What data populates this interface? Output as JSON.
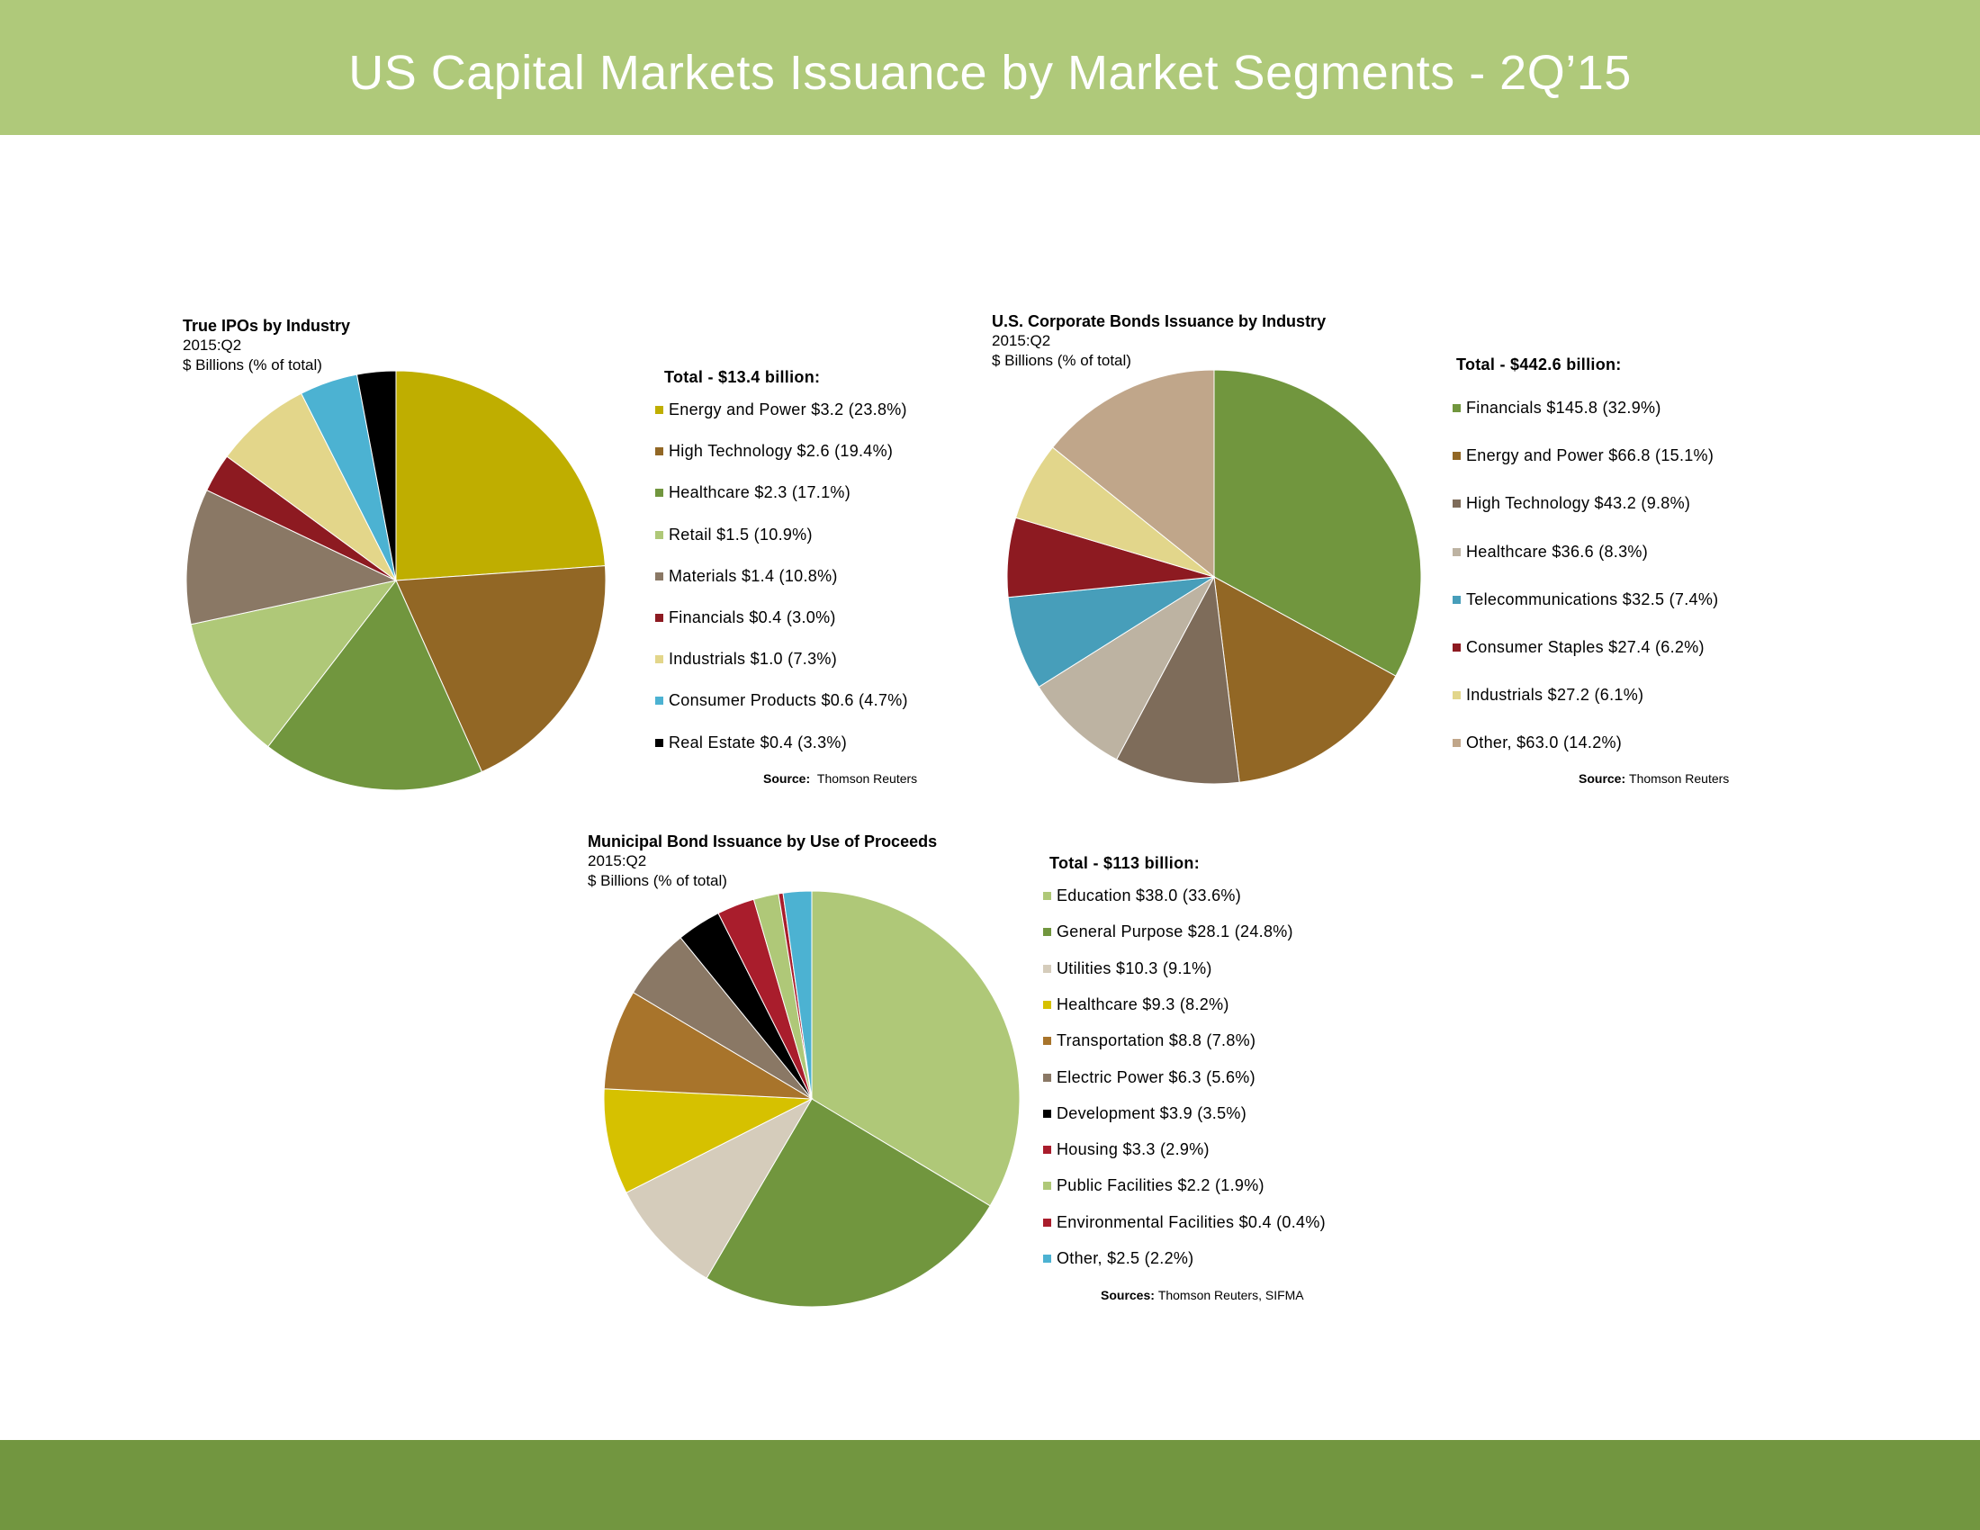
{
  "header": {
    "title": "US Capital Markets Issuance by Market Segments - 2Q’15",
    "band_color": "#afc97a"
  },
  "footer": {
    "band_color": "#729640"
  },
  "chart_data": [
    {
      "type": "pie",
      "title": "True IPOs by Industry",
      "period": "2015:Q2",
      "units": "$ Billions (% of total)",
      "total_label": "Total - $13.4 billion:",
      "source_label": "Source:",
      "source_text": "Thomson Reuters",
      "slices": [
        {
          "name": "Energy and Power",
          "value": 3.2,
          "percent": 23.8,
          "label": "Energy and Power  $3.2  (23.8%)",
          "color": "#bfae00"
        },
        {
          "name": "High Technology",
          "value": 2.6,
          "percent": 19.4,
          "label": "High Technology  $2.6  (19.4%)",
          "color": "#926725"
        },
        {
          "name": "Healthcare",
          "value": 2.3,
          "percent": 17.1,
          "label": "Healthcare  $2.3  (17.1%)",
          "color": "#71963e"
        },
        {
          "name": "Retail",
          "value": 1.5,
          "percent": 10.9,
          "label": "Retail  $1.5  (10.9%)",
          "color": "#afc878"
        },
        {
          "name": "Materials",
          "value": 1.4,
          "percent": 10.8,
          "label": "Materials  $1.4  (10.8%)",
          "color": "#8a7865"
        },
        {
          "name": "Financials",
          "value": 0.4,
          "percent": 3.0,
          "label": "Financials  $0.4  (3.0%)",
          "color": "#8d1a21"
        },
        {
          "name": "Industrials",
          "value": 1.0,
          "percent": 7.3,
          "label": "Industrials  $1.0  (7.3%)",
          "color": "#e3d68a"
        },
        {
          "name": "Consumer Products",
          "value": 0.6,
          "percent": 4.7,
          "label": "Consumer Products  $0.6  (4.7%)",
          "color": "#4cb2d2"
        },
        {
          "name": "Real Estate",
          "value": 0.4,
          "percent": 3.3,
          "label": "Real Estate  $0.4  (3.3%)",
          "color": "#000000"
        }
      ]
    },
    {
      "type": "pie",
      "title": "U.S. Corporate Bonds Issuance by Industry",
      "period": "2015:Q2",
      "units": "$ Billions (% of total)",
      "total_label": "Total - $442.6 billion:",
      "source_label": "Source:",
      "source_text": "Thomson Reuters",
      "slices": [
        {
          "name": "Financials",
          "value": 145.8,
          "percent": 32.9,
          "label": "Financials  $145.8  (32.9%)",
          "color": "#71963e"
        },
        {
          "name": "Energy and Power",
          "value": 66.8,
          "percent": 15.1,
          "label": "Energy and Power  $66.8  (15.1%)",
          "color": "#926725"
        },
        {
          "name": "High Technology",
          "value": 43.2,
          "percent": 9.8,
          "label": "High Technology  $43.2  (9.8%)",
          "color": "#7e6c5a"
        },
        {
          "name": "Healthcare",
          "value": 36.6,
          "percent": 8.3,
          "label": "Healthcare  $36.6  (8.3%)",
          "color": "#bdb3a2"
        },
        {
          "name": "Telecommunications",
          "value": 32.5,
          "percent": 7.4,
          "label": "Telecommunications  $32.5  (7.4%)",
          "color": "#479eba"
        },
        {
          "name": "Consumer Staples",
          "value": 27.4,
          "percent": 6.2,
          "label": "Consumer Staples  $27.4  (6.2%)",
          "color": "#8d1a21"
        },
        {
          "name": "Industrials",
          "value": 27.2,
          "percent": 6.1,
          "label": "Industrials  $27.2  (6.1%)",
          "color": "#e2d68b"
        },
        {
          "name": "Other",
          "value": 63.0,
          "percent": 14.2,
          "label": "Other,  $63.0  (14.2%)",
          "color": "#c0a68a"
        }
      ]
    },
    {
      "type": "pie",
      "title": "Municipal Bond Issuance by Use of Proceeds",
      "period": "2015:Q2",
      "units": "$ Billions (% of total)",
      "total_label": "Total - $113 billion:",
      "source_label": "Sources:",
      "source_text": "Thomson Reuters, SIFMA",
      "slices": [
        {
          "name": "Education",
          "value": 38.0,
          "percent": 33.6,
          "label": "Education  $38.0  (33.6%)",
          "color": "#afc878"
        },
        {
          "name": "General Purpose",
          "value": 28.1,
          "percent": 24.8,
          "label": "General Purpose  $28.1  (24.8%)",
          "color": "#71963e"
        },
        {
          "name": "Utilities",
          "value": 10.3,
          "percent": 9.1,
          "label": "Utilities  $10.3  (9.1%)",
          "color": "#d5ccbb"
        },
        {
          "name": "Healthcare",
          "value": 9.3,
          "percent": 8.2,
          "label": "Healthcare  $9.3  (8.2%)",
          "color": "#d6c100"
        },
        {
          "name": "Transportation",
          "value": 8.8,
          "percent": 7.8,
          "label": "Transportation  $8.8  (7.8%)",
          "color": "#a8742b"
        },
        {
          "name": "Electric Power",
          "value": 6.3,
          "percent": 5.6,
          "label": "Electric Power  $6.3  (5.6%)",
          "color": "#8a7865"
        },
        {
          "name": "Development",
          "value": 3.9,
          "percent": 3.5,
          "label": "Development  $3.9  (3.5%)",
          "color": "#000000"
        },
        {
          "name": "Housing",
          "value": 3.3,
          "percent": 2.9,
          "label": "Housing  $3.3  (2.9%)",
          "color": "#a91d2c"
        },
        {
          "name": "Public Facilities",
          "value": 2.2,
          "percent": 1.9,
          "label": "Public Facilities  $2.2  (1.9%)",
          "color": "#afc878"
        },
        {
          "name": "Environmental Facilities",
          "value": 0.4,
          "percent": 0.4,
          "label": "Environmental Facilities  $0.4  (0.4%)",
          "color": "#a91d2c"
        },
        {
          "name": "Other",
          "value": 2.5,
          "percent": 2.2,
          "label": "Other,  $2.5  (2.2%)",
          "color": "#4cb2d2"
        }
      ]
    }
  ]
}
